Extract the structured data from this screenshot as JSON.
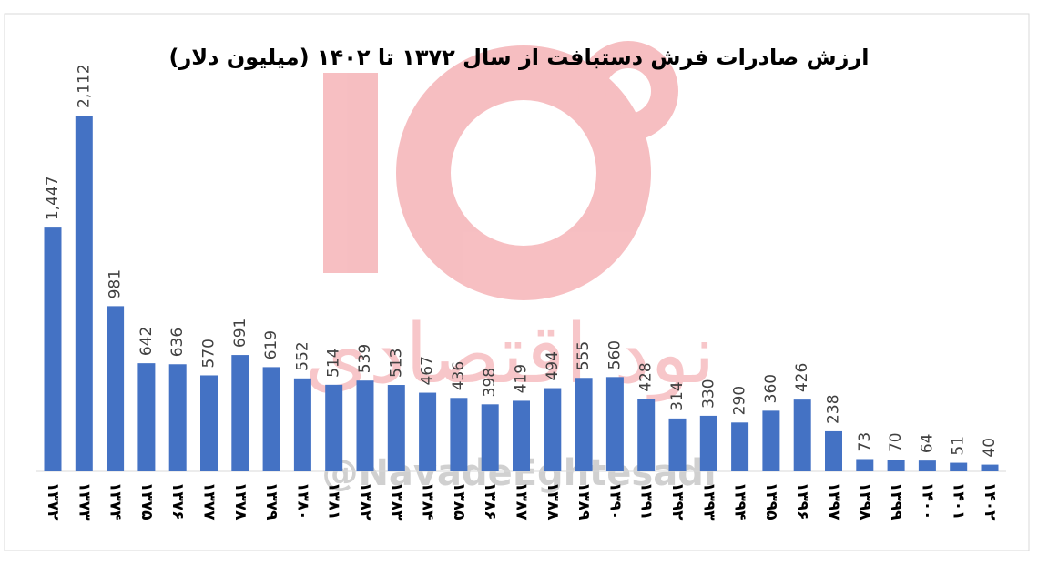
{
  "chart_data": {
    "type": "bar",
    "title": "ارزش صادرات فرش دستبافت از سال ۱۳۷۲ تا ۱۴۰۲ (میلیون دلار)",
    "categories": [
      "۱۳۷۲",
      "۱۳۷۳",
      "۱۳۷۴",
      "۱۳۷۵",
      "۱۳۷۶",
      "۱۳۷۷",
      "۱۳۷۸",
      "۱۳۷۹",
      "۱۳۸۰",
      "۱۳۸۱",
      "۱۳۸۲",
      "۱۳۸۳",
      "۱۳۸۴",
      "۱۳۸۵",
      "۱۳۸۶",
      "۱۳۸۷",
      "۱۳۸۸",
      "۱۳۸۹",
      "۱۳۹۰",
      "۱۳۹۱",
      "۱۳۹۲",
      "۱۳۹۳",
      "۱۳۹۴",
      "۱۳۹۵",
      "۱۳۹۶",
      "۱۳۹۷",
      "۱۳۹۸",
      "۱۳۹۹",
      "۱۴۰۰",
      "۱۴۰۱",
      "۱۴۰۲"
    ],
    "values": [
      1447,
      2112,
      981,
      642,
      636,
      570,
      691,
      619,
      552,
      514,
      539,
      513,
      467,
      436,
      398,
      419,
      494,
      555,
      560,
      428,
      314,
      330,
      290,
      360,
      426,
      238,
      73,
      70,
      64,
      51,
      40
    ],
    "value_labels": [
      "1,447",
      "2,112",
      "981",
      "642",
      "636",
      "570",
      "691",
      "619",
      "552",
      "514",
      "539",
      "513",
      "467",
      "436",
      "398",
      "419",
      "494",
      "555",
      "560",
      "428",
      "314",
      "330",
      "290",
      "360",
      "426",
      "238",
      "73",
      "70",
      "64",
      "51",
      "40"
    ],
    "color": "#4472c4",
    "watermark": "نود اقتصادی",
    "handle": "@NavadeEghtesadi"
  }
}
